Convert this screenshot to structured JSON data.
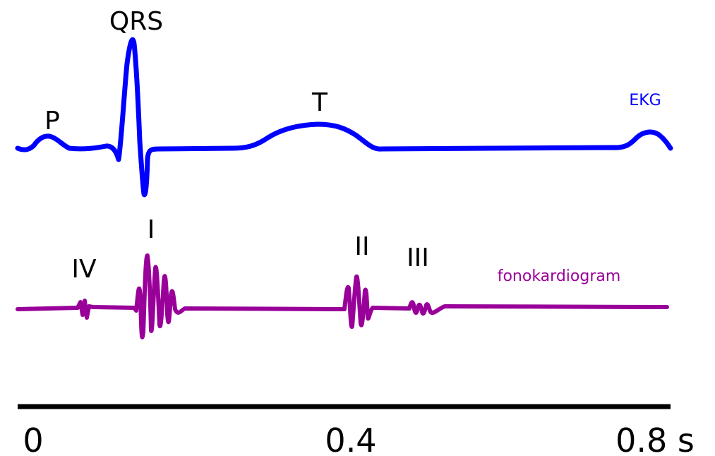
{
  "ekg": {
    "label": "EKG",
    "color": "#0000ff",
    "waves": {
      "p": "P",
      "qrs": "QRS",
      "t": "T"
    }
  },
  "pcg": {
    "label": "fonokardiogram",
    "color": "#990099",
    "sounds": {
      "first": "I",
      "second": "II",
      "third": "III",
      "fourth": "IV"
    }
  },
  "time_axis": {
    "color": "#000000",
    "ticks": [
      "0",
      "0.4",
      "0.8 s"
    ]
  }
}
